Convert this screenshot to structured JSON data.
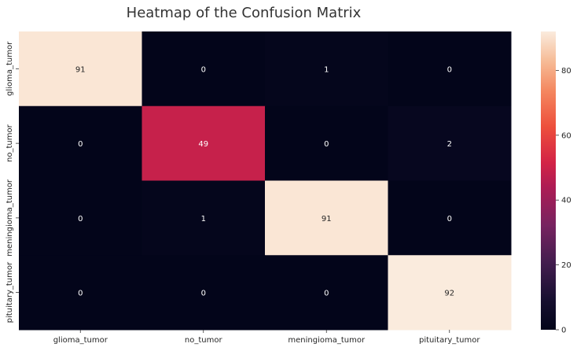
{
  "chart_data": {
    "type": "heatmap",
    "title": "Heatmap of the Confusion Matrix",
    "xlabel": "",
    "ylabel": "",
    "x_categories": [
      "glioma_tumor",
      "no_tumor",
      "meningioma_tumor",
      "pituitary_tumor"
    ],
    "y_categories": [
      "glioma_tumor",
      "no_tumor",
      "meningioma_tumor",
      "pituitary_tumor"
    ],
    "values": [
      [
        91,
        0,
        1,
        0
      ],
      [
        0,
        49,
        0,
        2
      ],
      [
        0,
        1,
        91,
        0
      ],
      [
        0,
        0,
        0,
        92
      ]
    ],
    "colorbar": {
      "colormap": "rocket",
      "range": [
        0,
        92
      ],
      "ticks": [
        0,
        20,
        40,
        60,
        80
      ]
    },
    "annotations": true,
    "grid": false
  }
}
